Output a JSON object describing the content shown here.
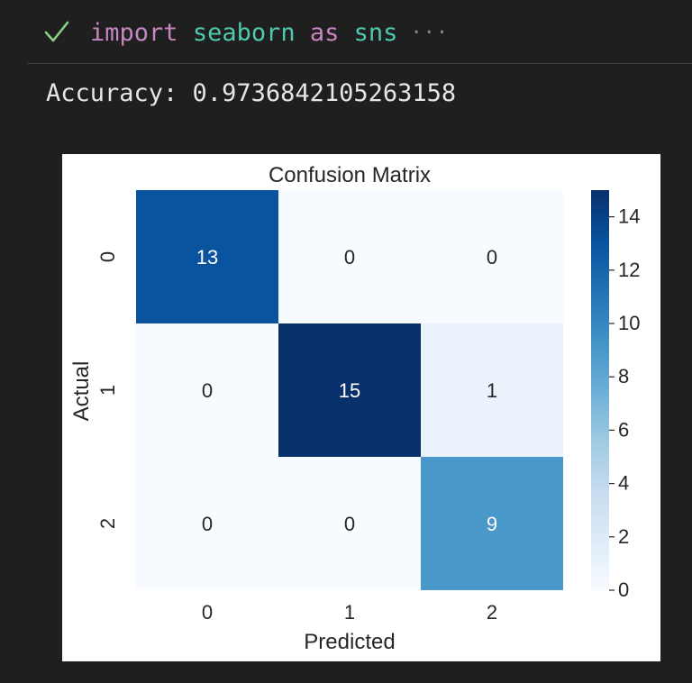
{
  "cell": {
    "status_icon": "check-icon",
    "code_tokens": [
      {
        "text": "import",
        "kind": "keyword"
      },
      {
        "text": " ",
        "kind": "space"
      },
      {
        "text": "seaborn",
        "kind": "module"
      },
      {
        "text": " ",
        "kind": "space"
      },
      {
        "text": "as",
        "kind": "keyword"
      },
      {
        "text": " ",
        "kind": "space"
      },
      {
        "text": "sns",
        "kind": "module"
      }
    ],
    "ellipsis": "···"
  },
  "output": {
    "text": "Accuracy: 0.9736842105263158"
  },
  "colors": {
    "background": "#1f1f1f",
    "check": "#89d185",
    "keyword": "#c586c0",
    "module": "#4ec9b0",
    "output_text": "#e6e6e6"
  },
  "chart_data": {
    "type": "heatmap",
    "title": "Confusion Matrix",
    "xlabel": "Predicted",
    "ylabel": "Actual",
    "x_categories": [
      "0",
      "1",
      "2"
    ],
    "y_categories": [
      "0",
      "1",
      "2"
    ],
    "values": [
      [
        13,
        0,
        0
      ],
      [
        0,
        15,
        1
      ],
      [
        0,
        0,
        9
      ]
    ],
    "colormap": "Blues",
    "colorbar": {
      "range": [
        0,
        15
      ],
      "ticks": [
        "0",
        "2",
        "4",
        "6",
        "8",
        "10",
        "12",
        "14"
      ]
    }
  }
}
